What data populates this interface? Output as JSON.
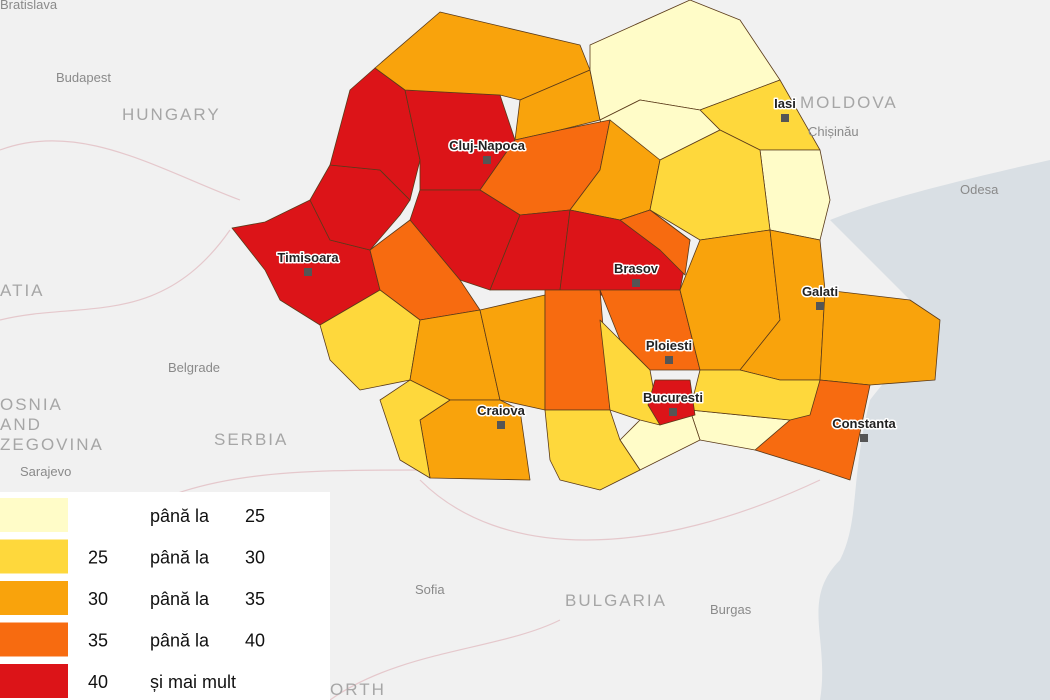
{
  "map": {
    "background_labels": [
      "Bratislava",
      "Budapest",
      "HUNGARY",
      "MOLDOVA",
      "Chișinău",
      "Odesa",
      "ATIA",
      "OSNIA",
      "AND",
      "ZEGOVINA",
      "Sarajevo",
      "Belgrade",
      "SERBIA",
      "Sofia",
      "BULGARIA",
      "Burgas",
      "ORTH"
    ],
    "cities": [
      "Iasi",
      "Cluj-Napoca",
      "Timisoara",
      "Brasov",
      "Galati",
      "Ploiesti",
      "Bucuresti",
      "Craiova",
      "Constanta"
    ]
  },
  "legend": {
    "items": [
      {
        "color": "#fffcc8",
        "label": "până la",
        "to": "25"
      },
      {
        "color": "#fed83c",
        "from": "25",
        "label": "până la",
        "to": "30"
      },
      {
        "color": "#f9a30c",
        "from": "30",
        "label": "până la",
        "to": "35"
      },
      {
        "color": "#f76b10",
        "from": "35",
        "label": "până la",
        "to": "40"
      },
      {
        "color": "#dc1418",
        "from": "40",
        "label": "și mai mult"
      }
    ]
  }
}
